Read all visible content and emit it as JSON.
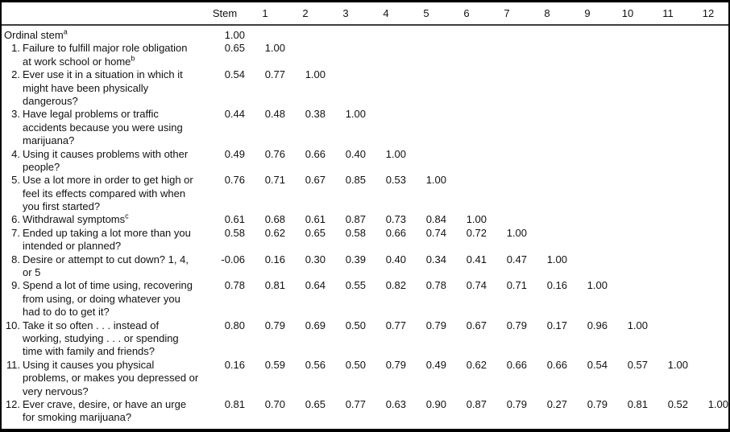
{
  "table": {
    "columns": [
      "Stem",
      "1",
      "2",
      "3",
      "4",
      "5",
      "6",
      "7",
      "8",
      "9",
      "10",
      "11",
      "12"
    ],
    "rows": [
      {
        "num": "",
        "label_lines": [
          "Ordinal stem^a"
        ],
        "values": [
          "1.00"
        ]
      },
      {
        "num": "1.",
        "label_lines": [
          "Failure to fulfill major role obligation",
          "at work school or home^b"
        ],
        "values": [
          "0.65",
          "1.00"
        ]
      },
      {
        "num": "2.",
        "label_lines": [
          "Ever use it in a situation in which it",
          "might have been physically",
          "dangerous?"
        ],
        "values": [
          "0.54",
          "0.77",
          "1.00"
        ]
      },
      {
        "num": "3.",
        "label_lines": [
          "Have legal problems or traffic",
          "accidents because you were using",
          "marijuana?"
        ],
        "values": [
          "0.44",
          "0.48",
          "0.38",
          "1.00"
        ]
      },
      {
        "num": "4.",
        "label_lines": [
          "Using it causes problems with other",
          "people?"
        ],
        "values": [
          "0.49",
          "0.76",
          "0.66",
          "0.40",
          "1.00"
        ]
      },
      {
        "num": "5.",
        "label_lines": [
          "Use a lot more in order to get high or",
          "feel its effects compared with when",
          "you first started?"
        ],
        "values": [
          "0.76",
          "0.71",
          "0.67",
          "0.85",
          "0.53",
          "1.00"
        ]
      },
      {
        "num": "6.",
        "label_lines": [
          "Withdrawal symptoms^c"
        ],
        "values": [
          "0.61",
          "0.68",
          "0.61",
          "0.87",
          "0.73",
          "0.84",
          "1.00"
        ]
      },
      {
        "num": "7.",
        "label_lines": [
          "Ended up taking a lot more than you",
          "intended or planned?"
        ],
        "values": [
          "0.58",
          "0.62",
          "0.65",
          "0.58",
          "0.66",
          "0.74",
          "0.72",
          "1.00"
        ]
      },
      {
        "num": "8.",
        "label_lines": [
          "Desire or attempt to cut down? 1, 4,",
          "or 5"
        ],
        "values": [
          "-0.06",
          "0.16",
          "0.30",
          "0.39",
          "0.40",
          "0.34",
          "0.41",
          "0.47",
          "1.00"
        ]
      },
      {
        "num": "9.",
        "label_lines": [
          "Spend a lot of time using, recovering",
          "from using, or doing whatever you",
          "had to do to get it?"
        ],
        "values": [
          "0.78",
          "0.81",
          "0.64",
          "0.55",
          "0.82",
          "0.78",
          "0.74",
          "0.71",
          "0.16",
          "1.00"
        ]
      },
      {
        "num": "10.",
        "label_lines": [
          "Take it so often . . . instead of",
          "working, studying . . . or spending",
          "time with family and friends?"
        ],
        "values": [
          "0.80",
          "0.79",
          "0.69",
          "0.50",
          "0.77",
          "0.79",
          "0.67",
          "0.79",
          "0.17",
          "0.96",
          "1.00"
        ]
      },
      {
        "num": "11.",
        "label_lines": [
          "Using it causes you physical",
          "problems, or makes you depressed or",
          "very nervous?"
        ],
        "values": [
          "0.16",
          "0.59",
          "0.56",
          "0.50",
          "0.79",
          "0.49",
          "0.62",
          "0.66",
          "0.66",
          "0.54",
          "0.57",
          "1.00"
        ]
      },
      {
        "num": "12.",
        "label_lines": [
          "Ever crave, desire, or have an urge",
          "for smoking marijuana?"
        ],
        "values": [
          "0.81",
          "0.70",
          "0.65",
          "0.77",
          "0.63",
          "0.90",
          "0.87",
          "0.79",
          "0.27",
          "0.79",
          "0.81",
          "0.52",
          "1.00"
        ]
      }
    ]
  }
}
